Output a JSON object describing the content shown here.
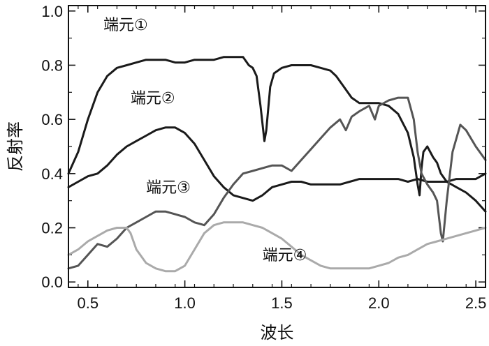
{
  "chart_data": {
    "type": "line",
    "xlabel": "波长",
    "ylabel": "反射率",
    "xlim": [
      0.4,
      2.55
    ],
    "ylim": [
      -0.02,
      1.02
    ],
    "x_ticks": [
      0.5,
      1.0,
      1.5,
      2.0,
      2.5
    ],
    "x_tick_labels": [
      "0.5",
      "1.0",
      "1.5",
      "2.0",
      "2.5"
    ],
    "y_ticks": [
      0.0,
      0.2,
      0.4,
      0.6,
      0.8,
      1.0
    ],
    "y_tick_labels": [
      "0.0",
      "0.2",
      "0.4",
      "0.6",
      "0.8",
      "1.0"
    ],
    "grid": false,
    "legend": "none",
    "series": [
      {
        "name": "端元①",
        "color": "#1a1a1a",
        "points": [
          [
            0.4,
            0.4
          ],
          [
            0.45,
            0.48
          ],
          [
            0.5,
            0.6
          ],
          [
            0.55,
            0.7
          ],
          [
            0.6,
            0.76
          ],
          [
            0.65,
            0.79
          ],
          [
            0.7,
            0.8
          ],
          [
            0.75,
            0.81
          ],
          [
            0.8,
            0.82
          ],
          [
            0.85,
            0.82
          ],
          [
            0.9,
            0.82
          ],
          [
            0.95,
            0.81
          ],
          [
            1.0,
            0.81
          ],
          [
            1.05,
            0.82
          ],
          [
            1.1,
            0.82
          ],
          [
            1.15,
            0.82
          ],
          [
            1.2,
            0.83
          ],
          [
            1.25,
            0.83
          ],
          [
            1.3,
            0.83
          ],
          [
            1.33,
            0.8
          ],
          [
            1.35,
            0.79
          ],
          [
            1.37,
            0.76
          ],
          [
            1.39,
            0.65
          ],
          [
            1.41,
            0.52
          ],
          [
            1.42,
            0.56
          ],
          [
            1.44,
            0.72
          ],
          [
            1.46,
            0.77
          ],
          [
            1.5,
            0.79
          ],
          [
            1.55,
            0.8
          ],
          [
            1.6,
            0.8
          ],
          [
            1.65,
            0.8
          ],
          [
            1.7,
            0.79
          ],
          [
            1.75,
            0.78
          ],
          [
            1.78,
            0.76
          ],
          [
            1.82,
            0.72
          ],
          [
            1.86,
            0.68
          ],
          [
            1.9,
            0.66
          ],
          [
            1.95,
            0.66
          ],
          [
            2.0,
            0.66
          ],
          [
            2.05,
            0.65
          ],
          [
            2.1,
            0.62
          ],
          [
            2.15,
            0.55
          ],
          [
            2.18,
            0.46
          ],
          [
            2.2,
            0.36
          ],
          [
            2.21,
            0.32
          ],
          [
            2.22,
            0.42
          ],
          [
            2.23,
            0.48
          ],
          [
            2.25,
            0.5
          ],
          [
            2.28,
            0.46
          ],
          [
            2.3,
            0.44
          ],
          [
            2.32,
            0.4
          ],
          [
            2.35,
            0.37
          ],
          [
            2.4,
            0.35
          ],
          [
            2.45,
            0.33
          ],
          [
            2.5,
            0.3
          ],
          [
            2.55,
            0.26
          ]
        ]
      },
      {
        "name": "端元②",
        "color": "#1a1a1a",
        "points": [
          [
            0.4,
            0.35
          ],
          [
            0.45,
            0.37
          ],
          [
            0.5,
            0.39
          ],
          [
            0.55,
            0.4
          ],
          [
            0.6,
            0.43
          ],
          [
            0.65,
            0.47
          ],
          [
            0.7,
            0.5
          ],
          [
            0.75,
            0.52
          ],
          [
            0.8,
            0.54
          ],
          [
            0.85,
            0.56
          ],
          [
            0.9,
            0.57
          ],
          [
            0.95,
            0.57
          ],
          [
            1.0,
            0.55
          ],
          [
            1.05,
            0.51
          ],
          [
            1.1,
            0.45
          ],
          [
            1.15,
            0.39
          ],
          [
            1.2,
            0.35
          ],
          [
            1.25,
            0.32
          ],
          [
            1.3,
            0.31
          ],
          [
            1.35,
            0.3
          ],
          [
            1.4,
            0.32
          ],
          [
            1.45,
            0.35
          ],
          [
            1.5,
            0.36
          ],
          [
            1.55,
            0.37
          ],
          [
            1.6,
            0.37
          ],
          [
            1.65,
            0.36
          ],
          [
            1.7,
            0.36
          ],
          [
            1.75,
            0.36
          ],
          [
            1.8,
            0.36
          ],
          [
            1.85,
            0.37
          ],
          [
            1.9,
            0.38
          ],
          [
            1.95,
            0.38
          ],
          [
            2.0,
            0.38
          ],
          [
            2.05,
            0.38
          ],
          [
            2.1,
            0.38
          ],
          [
            2.15,
            0.37
          ],
          [
            2.2,
            0.38
          ],
          [
            2.25,
            0.37
          ],
          [
            2.3,
            0.37
          ],
          [
            2.35,
            0.37
          ],
          [
            2.4,
            0.38
          ],
          [
            2.45,
            0.38
          ],
          [
            2.5,
            0.38
          ],
          [
            2.55,
            0.4
          ]
        ]
      },
      {
        "name": "端元③",
        "color": "#555555",
        "points": [
          [
            0.4,
            0.05
          ],
          [
            0.45,
            0.06
          ],
          [
            0.5,
            0.1
          ],
          [
            0.55,
            0.14
          ],
          [
            0.6,
            0.13
          ],
          [
            0.65,
            0.16
          ],
          [
            0.7,
            0.2
          ],
          [
            0.75,
            0.22
          ],
          [
            0.8,
            0.24
          ],
          [
            0.85,
            0.26
          ],
          [
            0.9,
            0.26
          ],
          [
            0.95,
            0.25
          ],
          [
            1.0,
            0.24
          ],
          [
            1.05,
            0.22
          ],
          [
            1.1,
            0.21
          ],
          [
            1.15,
            0.25
          ],
          [
            1.2,
            0.31
          ],
          [
            1.25,
            0.36
          ],
          [
            1.3,
            0.4
          ],
          [
            1.35,
            0.41
          ],
          [
            1.4,
            0.42
          ],
          [
            1.45,
            0.43
          ],
          [
            1.5,
            0.43
          ],
          [
            1.55,
            0.41
          ],
          [
            1.6,
            0.45
          ],
          [
            1.65,
            0.49
          ],
          [
            1.7,
            0.53
          ],
          [
            1.75,
            0.57
          ],
          [
            1.8,
            0.6
          ],
          [
            1.83,
            0.56
          ],
          [
            1.86,
            0.61
          ],
          [
            1.9,
            0.63
          ],
          [
            1.95,
            0.65
          ],
          [
            1.98,
            0.6
          ],
          [
            2.0,
            0.65
          ],
          [
            2.05,
            0.67
          ],
          [
            2.1,
            0.68
          ],
          [
            2.15,
            0.68
          ],
          [
            2.18,
            0.6
          ],
          [
            2.2,
            0.48
          ],
          [
            2.22,
            0.4
          ],
          [
            2.25,
            0.36
          ],
          [
            2.28,
            0.33
          ],
          [
            2.3,
            0.3
          ],
          [
            2.32,
            0.18
          ],
          [
            2.33,
            0.15
          ],
          [
            2.35,
            0.3
          ],
          [
            2.38,
            0.48
          ],
          [
            2.42,
            0.58
          ],
          [
            2.45,
            0.56
          ],
          [
            2.5,
            0.5
          ],
          [
            2.55,
            0.45
          ]
        ]
      },
      {
        "name": "端元④",
        "color": "#aaaaaa",
        "points": [
          [
            0.4,
            0.1
          ],
          [
            0.45,
            0.12
          ],
          [
            0.5,
            0.15
          ],
          [
            0.55,
            0.17
          ],
          [
            0.6,
            0.19
          ],
          [
            0.65,
            0.2
          ],
          [
            0.7,
            0.2
          ],
          [
            0.72,
            0.18
          ],
          [
            0.75,
            0.12
          ],
          [
            0.8,
            0.07
          ],
          [
            0.85,
            0.05
          ],
          [
            0.9,
            0.04
          ],
          [
            0.95,
            0.04
          ],
          [
            1.0,
            0.06
          ],
          [
            1.05,
            0.12
          ],
          [
            1.1,
            0.18
          ],
          [
            1.15,
            0.21
          ],
          [
            1.2,
            0.22
          ],
          [
            1.25,
            0.22
          ],
          [
            1.3,
            0.22
          ],
          [
            1.35,
            0.21
          ],
          [
            1.4,
            0.2
          ],
          [
            1.45,
            0.18
          ],
          [
            1.5,
            0.16
          ],
          [
            1.55,
            0.13
          ],
          [
            1.6,
            0.1
          ],
          [
            1.65,
            0.08
          ],
          [
            1.7,
            0.06
          ],
          [
            1.75,
            0.05
          ],
          [
            1.8,
            0.05
          ],
          [
            1.85,
            0.05
          ],
          [
            1.9,
            0.05
          ],
          [
            1.95,
            0.05
          ],
          [
            2.0,
            0.06
          ],
          [
            2.05,
            0.07
          ],
          [
            2.1,
            0.09
          ],
          [
            2.15,
            0.1
          ],
          [
            2.2,
            0.12
          ],
          [
            2.25,
            0.14
          ],
          [
            2.3,
            0.15
          ],
          [
            2.35,
            0.16
          ],
          [
            2.4,
            0.17
          ],
          [
            2.45,
            0.18
          ],
          [
            2.5,
            0.19
          ],
          [
            2.55,
            0.2
          ]
        ]
      }
    ],
    "annotations": [
      {
        "text": "端元①",
        "x": 0.58,
        "y": 0.93
      },
      {
        "text": "端元②",
        "x": 0.72,
        "y": 0.66
      },
      {
        "text": "端元③",
        "x": 0.8,
        "y": 0.33
      },
      {
        "text": "端元④",
        "x": 1.4,
        "y": 0.08
      }
    ]
  }
}
